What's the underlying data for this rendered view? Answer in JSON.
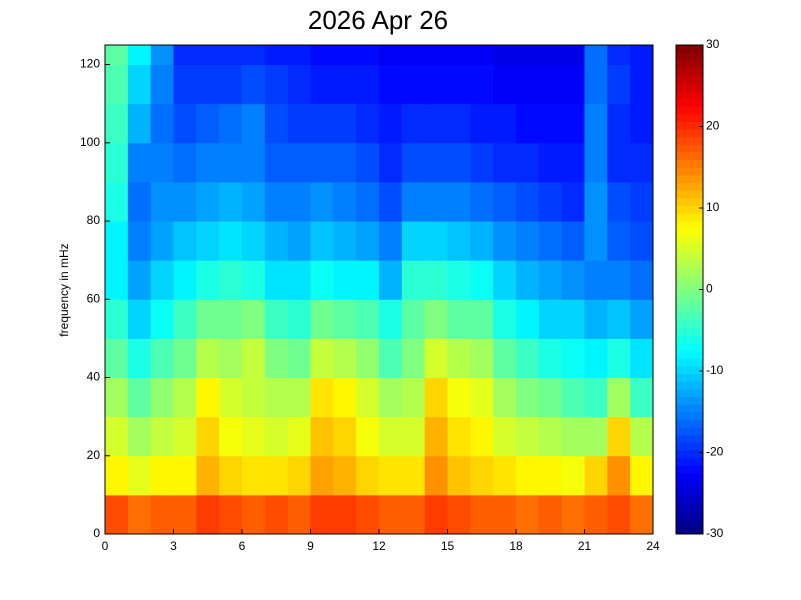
{
  "chart_data": {
    "type": "heatmap",
    "title": "2026 Apr 26",
    "y_label": "frequency in mHz",
    "colormap": "jet",
    "x_bins": [
      0,
      1,
      2,
      3,
      4,
      5,
      6,
      7,
      8,
      9,
      10,
      11,
      12,
      13,
      14,
      15,
      16,
      17,
      18,
      19,
      20,
      21,
      22,
      23,
      24
    ],
    "y_bins": [
      0,
      10,
      20,
      30,
      40,
      50,
      60,
      70,
      80,
      90,
      100,
      110,
      120,
      125
    ],
    "z": [
      [
        18,
        16,
        17,
        17,
        19,
        18,
        17,
        18,
        17,
        19,
        19,
        18,
        17,
        17,
        19,
        18,
        17,
        17,
        16,
        17,
        16,
        17,
        18,
        16
      ],
      [
        8,
        6,
        8,
        8,
        12,
        10,
        9,
        9,
        10,
        13,
        12,
        10,
        9,
        9,
        14,
        11,
        10,
        9,
        8,
        8,
        7,
        10,
        14,
        8
      ],
      [
        5,
        2,
        4,
        5,
        10,
        7,
        6,
        5,
        6,
        11,
        10,
        7,
        5,
        5,
        12,
        9,
        8,
        5,
        4,
        3,
        2,
        2,
        10,
        3
      ],
      [
        2,
        -2,
        1,
        3,
        8,
        5,
        4,
        3,
        3,
        9,
        8,
        5,
        2,
        3,
        10,
        7,
        6,
        2,
        0,
        -1,
        -3,
        -4,
        2,
        -4
      ],
      [
        -2,
        -6,
        -3,
        -1,
        3,
        2,
        4,
        0,
        -1,
        4,
        3,
        1,
        -3,
        0,
        5,
        3,
        2,
        -2,
        -4,
        -6,
        -7,
        -8,
        -6,
        -9
      ],
      [
        -5,
        -10,
        -7,
        -4,
        -1,
        -1,
        0,
        -4,
        -5,
        -1,
        -2,
        -3,
        -6,
        -2,
        0,
        -2,
        -2,
        -6,
        -8,
        -10,
        -10,
        -12,
        -11,
        -13
      ],
      [
        -8,
        -13,
        -10,
        -8,
        -6,
        -5,
        -6,
        -9,
        -9,
        -7,
        -8,
        -8,
        -12,
        -5,
        -5,
        -6,
        -7,
        -10,
        -12,
        -13,
        -14,
        -15,
        -15,
        -16
      ],
      [
        -8,
        -15,
        -13,
        -11,
        -10,
        -9,
        -10,
        -12,
        -13,
        -11,
        -12,
        -13,
        -15,
        -10,
        -10,
        -11,
        -12,
        -14,
        -15,
        -16,
        -17,
        -14,
        -17,
        -18
      ],
      [
        -6,
        -16,
        -14,
        -14,
        -13,
        -12,
        -13,
        -15,
        -15,
        -14,
        -15,
        -16,
        -18,
        -15,
        -15,
        -15,
        -16,
        -17,
        -18,
        -19,
        -20,
        -14,
        -18,
        -19
      ],
      [
        -5,
        -15,
        -15,
        -16,
        -15,
        -15,
        -15,
        -17,
        -17,
        -17,
        -17,
        -18,
        -20,
        -18,
        -18,
        -18,
        -19,
        -20,
        -20,
        -21,
        -21,
        -15,
        -20,
        -20
      ],
      [
        -4,
        -12,
        -16,
        -18,
        -17,
        -16,
        -15,
        -18,
        -19,
        -19,
        -19,
        -20,
        -21,
        -20,
        -20,
        -20,
        -21,
        -21,
        -22,
        -22,
        -22,
        -15,
        -20,
        -21
      ],
      [
        -3,
        -10,
        -15,
        -19,
        -19,
        -19,
        -18,
        -19,
        -20,
        -21,
        -21,
        -21,
        -22,
        -22,
        -22,
        -22,
        -22,
        -23,
        -23,
        -23,
        -23,
        -16,
        -19,
        -21
      ],
      [
        -2,
        -8,
        -14,
        -20,
        -20,
        -20,
        -20,
        -21,
        -21,
        -22,
        -22,
        -22,
        -23,
        -23,
        -23,
        -23,
        -23,
        -24,
        -24,
        -24,
        -24,
        -16,
        -20,
        -21
      ]
    ],
    "xlim": [
      0,
      24
    ],
    "xticks": [
      0,
      3,
      6,
      9,
      12,
      15,
      18,
      21,
      24
    ],
    "ylim": [
      0,
      125
    ],
    "yticks": [
      0,
      20,
      40,
      60,
      80,
      100,
      120
    ],
    "zlim": [
      -30,
      30
    ],
    "zticks": [
      -30,
      -20,
      -10,
      0,
      10,
      20,
      30
    ]
  }
}
